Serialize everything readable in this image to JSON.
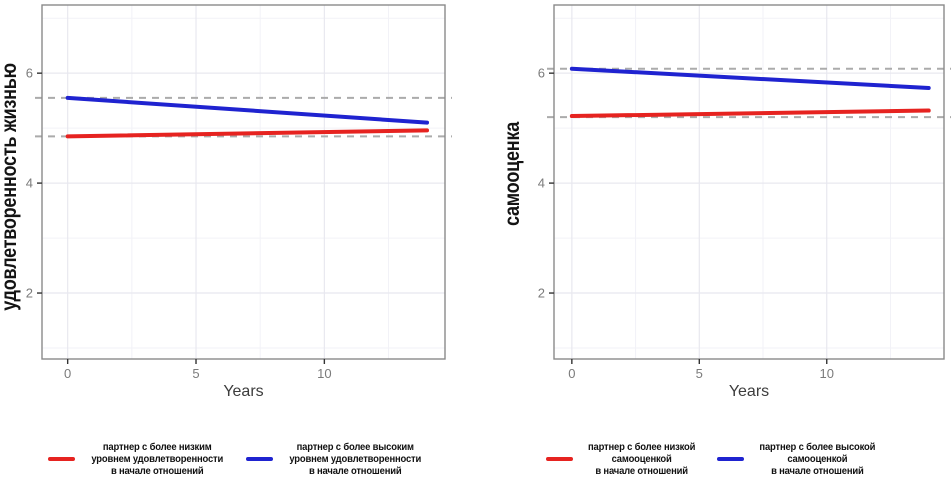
{
  "chart_data": [
    {
      "type": "line",
      "title": "",
      "ylabel": "удовлетворенность жизнью",
      "xlabel": "Years",
      "xlim": [
        -1.0,
        14.7
      ],
      "ylim": [
        0.8,
        7.24
      ],
      "x_ticks": [
        0,
        5,
        10
      ],
      "x_minor_ticks": [
        2.5,
        7.5,
        12.5
      ],
      "y_ticks": [
        2,
        4,
        6
      ],
      "y_minor_ticks": [
        1,
        3,
        5,
        7
      ],
      "grid": "on",
      "reference_lines": [
        {
          "y": 5.55,
          "color": "#ababab",
          "style": "dashed"
        },
        {
          "y": 4.85,
          "color": "#ababab",
          "style": "dashed"
        }
      ],
      "series": [
        {
          "name": "партнер с более низким уровнем удовлетворенности в начале отношений",
          "color": "#e62320",
          "x": [
            0,
            14
          ],
          "y": [
            4.85,
            4.96
          ]
        },
        {
          "name": "партнер с более высоким уровнем удовлетворенности в начале отношений",
          "color": "#1f23d0",
          "x": [
            0,
            14
          ],
          "y": [
            5.55,
            5.1
          ]
        }
      ],
      "legend_position": "bottom"
    },
    {
      "type": "line",
      "title": "",
      "ylabel": "самооценка",
      "xlabel": "Years",
      "xlim": [
        -0.7,
        14.6
      ],
      "ylim": [
        0.8,
        7.24
      ],
      "x_ticks": [
        0,
        5,
        10
      ],
      "x_minor_ticks": [
        2.5,
        7.5,
        12.5
      ],
      "y_ticks": [
        2,
        4,
        6
      ],
      "y_minor_ticks": [
        1,
        3,
        5,
        7
      ],
      "grid": "on",
      "reference_lines": [
        {
          "y": 6.08,
          "color": "#ababab",
          "style": "dashed"
        },
        {
          "y": 5.2,
          "color": "#ababab",
          "style": "dashed"
        }
      ],
      "series": [
        {
          "name": "партнер с более низкой самооценкой в начале отношений",
          "color": "#e62320",
          "x": [
            0,
            14
          ],
          "y": [
            5.22,
            5.32
          ]
        },
        {
          "name": "партнер с более высокой самооценкой в начале отношений",
          "color": "#1f23d0",
          "x": [
            0,
            14
          ],
          "y": [
            6.08,
            5.73
          ]
        }
      ],
      "legend_position": "bottom"
    }
  ],
  "figures": [
    {
      "legend": [
        {
          "color": "#e62320",
          "lines": [
            "партнер с более низким",
            "уровнем удовлетворенности",
            "в начале отношений"
          ]
        },
        {
          "color": "#1f23d0",
          "lines": [
            "партнер с более высоким",
            "уровнем удовлетворенности",
            "в начале отношений"
          ]
        }
      ]
    },
    {
      "legend": [
        {
          "color": "#e62320",
          "lines": [
            "партнер с более низкой",
            "самооценкой",
            "в начале отношений"
          ]
        },
        {
          "color": "#1f23d0",
          "lines": [
            "партнер с более высокой",
            "самооценкой",
            "в начале отношений"
          ]
        }
      ]
    }
  ]
}
